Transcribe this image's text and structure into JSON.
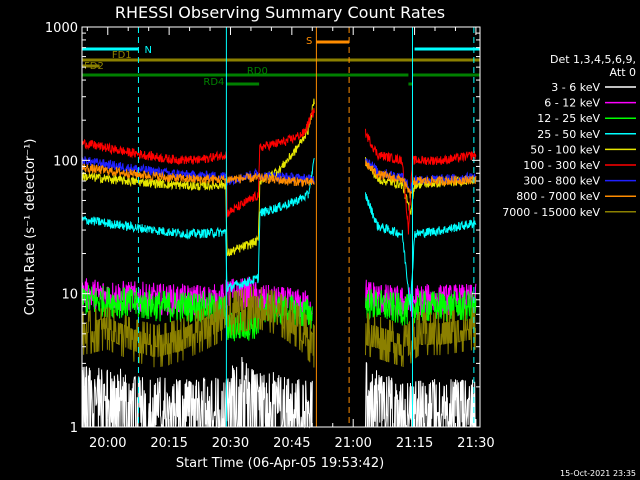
{
  "chart_data": {
    "type": "line",
    "title": "RHESSI Observing Summary Count Rates",
    "xlabel": "Start Time (06-Apr-05 19:53:42)",
    "ylabel": "Count Rate (s⁻¹ detector⁻¹)",
    "yscale": "log",
    "ylim": [
      1,
      1000
    ],
    "xlim": [
      "19:53:42",
      "21:31:00"
    ],
    "x_tick_labels": [
      "20:00",
      "20:15",
      "20:30",
      "20:45",
      "21:00",
      "21:15",
      "21:30"
    ],
    "y_tick_labels": [
      "1",
      "10",
      "100",
      "1000"
    ],
    "footer_timestamp": "15-Oct-2021 23:35",
    "legend": {
      "placement": "right",
      "header": [
        "Det 1,3,4,5,6,9,",
        "Att 0"
      ],
      "entries": [
        {
          "label": "3 - 6 keV",
          "color": "#ffffff"
        },
        {
          "label": "6 - 12 keV",
          "color": "#ff00ff"
        },
        {
          "label": "12 - 25 keV",
          "color": "#00ff00"
        },
        {
          "label": "25 - 50 keV",
          "color": "#00ffff"
        },
        {
          "label": "50 - 100 keV",
          "color": "#e6e600"
        },
        {
          "label": "100 - 300 keV",
          "color": "#ff0000"
        },
        {
          "label": "300 - 800 keV",
          "color": "#2020ff"
        },
        {
          "label": "800 - 7000 keV",
          "color": "#ff8c00"
        },
        {
          "label": "7000 - 15000 keV",
          "color": "#8b8000"
        }
      ]
    },
    "flag_bars": [
      {
        "label": "N",
        "color": "#00ffff",
        "segments": [
          [
            "19:53:42",
            "20:07:30"
          ],
          [
            "21:15:00",
            "21:31:00"
          ]
        ]
      },
      {
        "label": "FD1",
        "color": "#8b8000",
        "segments": [
          [
            "19:53:42",
            "21:31:00"
          ]
        ]
      },
      {
        "label": "FD2",
        "color": "#8b8000",
        "segments": [
          [
            "19:53:42",
            "19:58:00"
          ]
        ]
      },
      {
        "label": "RD0",
        "color": "#008000",
        "segments": [
          [
            "19:53:42",
            "21:13:30"
          ],
          [
            "21:14:30",
            "21:31:00"
          ]
        ]
      },
      {
        "label": "RD4",
        "color": "#008000",
        "segments": [
          [
            "20:29:00",
            "20:37:00"
          ],
          [
            "21:13:30",
            "21:14:30"
          ]
        ]
      },
      {
        "label": "S",
        "color": "#ff8c00",
        "segments": [
          [
            "20:51:00",
            "20:59:00"
          ]
        ]
      }
    ],
    "vertical_lines": [
      {
        "time": "19:53:42",
        "color": "#00ffff",
        "style": "solid"
      },
      {
        "time": "20:07:30",
        "color": "#00ffff",
        "style": "dashed"
      },
      {
        "time": "20:29:00",
        "color": "#00ffff",
        "style": "solid"
      },
      {
        "time": "20:51:00",
        "color": "#ff8c00",
        "style": "solid"
      },
      {
        "time": "20:59:00",
        "color": "#ff8c00",
        "style": "dashed"
      },
      {
        "time": "21:14:30",
        "color": "#00ffff",
        "style": "solid"
      },
      {
        "time": "21:29:30",
        "color": "#00ffff",
        "style": "dashed"
      }
    ],
    "series": [
      {
        "name": "3 - 6 keV",
        "color": "#ffffff",
        "noise": "spiky",
        "segments": [
          [
            [
              "19:53:42",
              2
            ],
            [
              "20:02:00",
              1.8
            ],
            [
              "20:10:00",
              1.4
            ],
            [
              "20:20:00",
              1.3
            ],
            [
              "20:28:00",
              1.5
            ],
            [
              "20:32:00",
              2.5
            ],
            [
              "20:38:00",
              1.8
            ],
            [
              "20:45:00",
              1.4
            ],
            [
              "20:50:00",
              1.3
            ]
          ],
          [
            [
              "21:03:00",
              2.5
            ],
            [
              "21:07:00",
              1.5
            ],
            [
              "21:14:00",
              1.3
            ],
            [
              "21:22:00",
              1.3
            ],
            [
              "21:30:00",
              1.3
            ]
          ]
        ]
      },
      {
        "name": "6 - 12 keV",
        "color": "#ff00ff",
        "noise": "dense",
        "segments": [
          [
            [
              "19:53:42",
              10
            ],
            [
              "20:05:00",
              9.5
            ],
            [
              "20:15:00",
              9
            ],
            [
              "20:22:00",
              9
            ],
            [
              "20:28:00",
              9
            ],
            [
              "20:29:10",
              10
            ],
            [
              "20:35:00",
              10
            ],
            [
              "20:37:00",
              9
            ],
            [
              "20:44:00",
              8.5
            ],
            [
              "20:50:00",
              8
            ]
          ],
          [
            [
              "21:03:00",
              10
            ],
            [
              "21:08:00",
              9
            ],
            [
              "21:13:00",
              8.5
            ],
            [
              "21:15:30",
              9
            ],
            [
              "21:22:00",
              9
            ],
            [
              "21:30:00",
              9
            ]
          ]
        ]
      },
      {
        "name": "12 - 25 keV",
        "color": "#00ff00",
        "noise": "dense",
        "segments": [
          [
            [
              "19:53:42",
              9
            ],
            [
              "20:05:00",
              8.5
            ],
            [
              "20:15:00",
              8
            ],
            [
              "20:22:00",
              8
            ],
            [
              "20:29:00",
              7.5
            ],
            [
              "20:29:10",
              5.5
            ],
            [
              "20:37:00",
              6
            ],
            [
              "20:37:10",
              8
            ],
            [
              "20:44:00",
              7.5
            ],
            [
              "20:50:00",
              7
            ]
          ],
          [
            [
              "21:03:00",
              8.5
            ],
            [
              "21:08:00",
              8
            ],
            [
              "21:13:00",
              7.5
            ],
            [
              "21:15:30",
              8
            ],
            [
              "21:22:00",
              8
            ],
            [
              "21:30:00",
              8
            ]
          ]
        ]
      },
      {
        "name": "25 - 50 keV",
        "color": "#00ffff",
        "noise": "light",
        "segments": [
          [
            [
              "19:53:42",
              36
            ],
            [
              "20:05:00",
              32
            ],
            [
              "20:15:00",
              29
            ],
            [
              "20:20:00",
              28
            ],
            [
              "20:28:50",
              29
            ],
            [
              "20:29:10",
              11
            ],
            [
              "20:36:50",
              13
            ],
            [
              "20:37:10",
              40
            ],
            [
              "20:45:00",
              48
            ],
            [
              "20:49:00",
              55
            ],
            [
              "20:50:30",
              100
            ]
          ],
          [
            [
              "21:03:00",
              55
            ],
            [
              "21:06:00",
              32
            ],
            [
              "21:12:00",
              28
            ],
            [
              "21:14:00",
              8
            ],
            [
              "21:15:00",
              28
            ],
            [
              "21:22:00",
              30
            ],
            [
              "21:30:00",
              34
            ]
          ]
        ]
      },
      {
        "name": "50 - 100 keV",
        "color": "#e6e600",
        "noise": "light",
        "segments": [
          [
            [
              "19:53:42",
              76
            ],
            [
              "20:05:00",
              70
            ],
            [
              "20:15:00",
              66
            ],
            [
              "20:22:00",
              64
            ],
            [
              "20:28:50",
              66
            ],
            [
              "20:29:10",
              20
            ],
            [
              "20:36:50",
              25
            ],
            [
              "20:37:10",
              70
            ],
            [
              "20:42:00",
              85
            ],
            [
              "20:46:00",
              120
            ],
            [
              "20:49:00",
              170
            ],
            [
              "20:50:30",
              280
            ]
          ],
          [
            [
              "21:03:00",
              100
            ],
            [
              "21:06:00",
              72
            ],
            [
              "21:12:00",
              66
            ],
            [
              "21:14:00",
              40
            ],
            [
              "21:15:00",
              66
            ],
            [
              "21:22:00",
              68
            ],
            [
              "21:30:00",
              72
            ]
          ]
        ]
      },
      {
        "name": "100 - 300 keV",
        "color": "#ff0000",
        "noise": "light",
        "segments": [
          [
            [
              "19:53:42",
              135
            ],
            [
              "20:05:00",
              115
            ],
            [
              "20:15:00",
              102
            ],
            [
              "20:22:00",
              100
            ],
            [
              "20:28:30",
              110
            ],
            [
              "20:29:00",
              112
            ],
            [
              "20:29:10",
              40
            ],
            [
              "20:36:50",
              55
            ],
            [
              "20:37:10",
              125
            ],
            [
              "20:44:00",
              140
            ],
            [
              "20:48:00",
              160
            ],
            [
              "20:50:30",
              240
            ]
          ],
          [
            [
              "21:03:00",
              160
            ],
            [
              "21:06:00",
              110
            ],
            [
              "21:12:00",
              100
            ],
            [
              "21:13:30",
              30
            ],
            [
              "21:14:30",
              100
            ],
            [
              "21:22:00",
              100
            ],
            [
              "21:30:00",
              110
            ]
          ]
        ]
      },
      {
        "name": "300 - 800 keV",
        "color": "#2020ff",
        "noise": "light",
        "segments": [
          [
            [
              "19:53:42",
              100
            ],
            [
              "20:05:00",
              88
            ],
            [
              "20:15:00",
              80
            ],
            [
              "20:22:00",
              77
            ],
            [
              "20:28:50",
              76
            ],
            [
              "20:29:10",
              70
            ],
            [
              "20:36:50",
              80
            ],
            [
              "20:37:10",
              77
            ],
            [
              "20:44:00",
              75
            ],
            [
              "20:50:30",
              72
            ]
          ],
          [
            [
              "21:03:00",
              105
            ],
            [
              "21:06:00",
              82
            ],
            [
              "21:12:00",
              75
            ],
            [
              "21:14:00",
              60
            ],
            [
              "21:15:00",
              72
            ],
            [
              "21:22:00",
              72
            ],
            [
              "21:30:00",
              75
            ]
          ]
        ]
      },
      {
        "name": "800 - 7000 keV",
        "color": "#ff8c00",
        "noise": "light",
        "segments": [
          [
            [
              "19:53:42",
              88
            ],
            [
              "20:05:00",
              80
            ],
            [
              "20:15:00",
              74
            ],
            [
              "20:22:00",
              72
            ],
            [
              "20:29:00",
              72
            ],
            [
              "20:37:00",
              74
            ],
            [
              "20:44:00",
              70
            ],
            [
              "20:50:30",
              68
            ]
          ],
          [
            [
              "21:03:00",
              95
            ],
            [
              "21:06:00",
              78
            ],
            [
              "21:12:00",
              72
            ],
            [
              "21:14:00",
              55
            ],
            [
              "21:15:00",
              70
            ],
            [
              "21:22:00",
              70
            ],
            [
              "21:30:00",
              72
            ]
          ]
        ]
      },
      {
        "name": "7000 - 15000 keV",
        "color": "#8b8000",
        "noise": "stepped",
        "segments": [
          [
            [
              "19:53:42",
              5
            ],
            [
              "20:00:00",
              5.5
            ],
            [
              "20:06:00",
              4.5
            ],
            [
              "20:12:00",
              4
            ],
            [
              "20:18:00",
              4.5
            ],
            [
              "20:24:00",
              5.5
            ],
            [
              "20:30:00",
              7
            ],
            [
              "20:36:00",
              8
            ],
            [
              "20:42:00",
              7
            ],
            [
              "20:47:00",
              5.5
            ],
            [
              "20:50:30",
              4
            ]
          ],
          [
            [
              "21:03:00",
              5
            ],
            [
              "21:08:00",
              4.5
            ],
            [
              "21:13:00",
              4
            ],
            [
              "21:16:00",
              5
            ],
            [
              "21:22:00",
              5
            ],
            [
              "21:30:00",
              5.5
            ]
          ]
        ]
      }
    ]
  }
}
